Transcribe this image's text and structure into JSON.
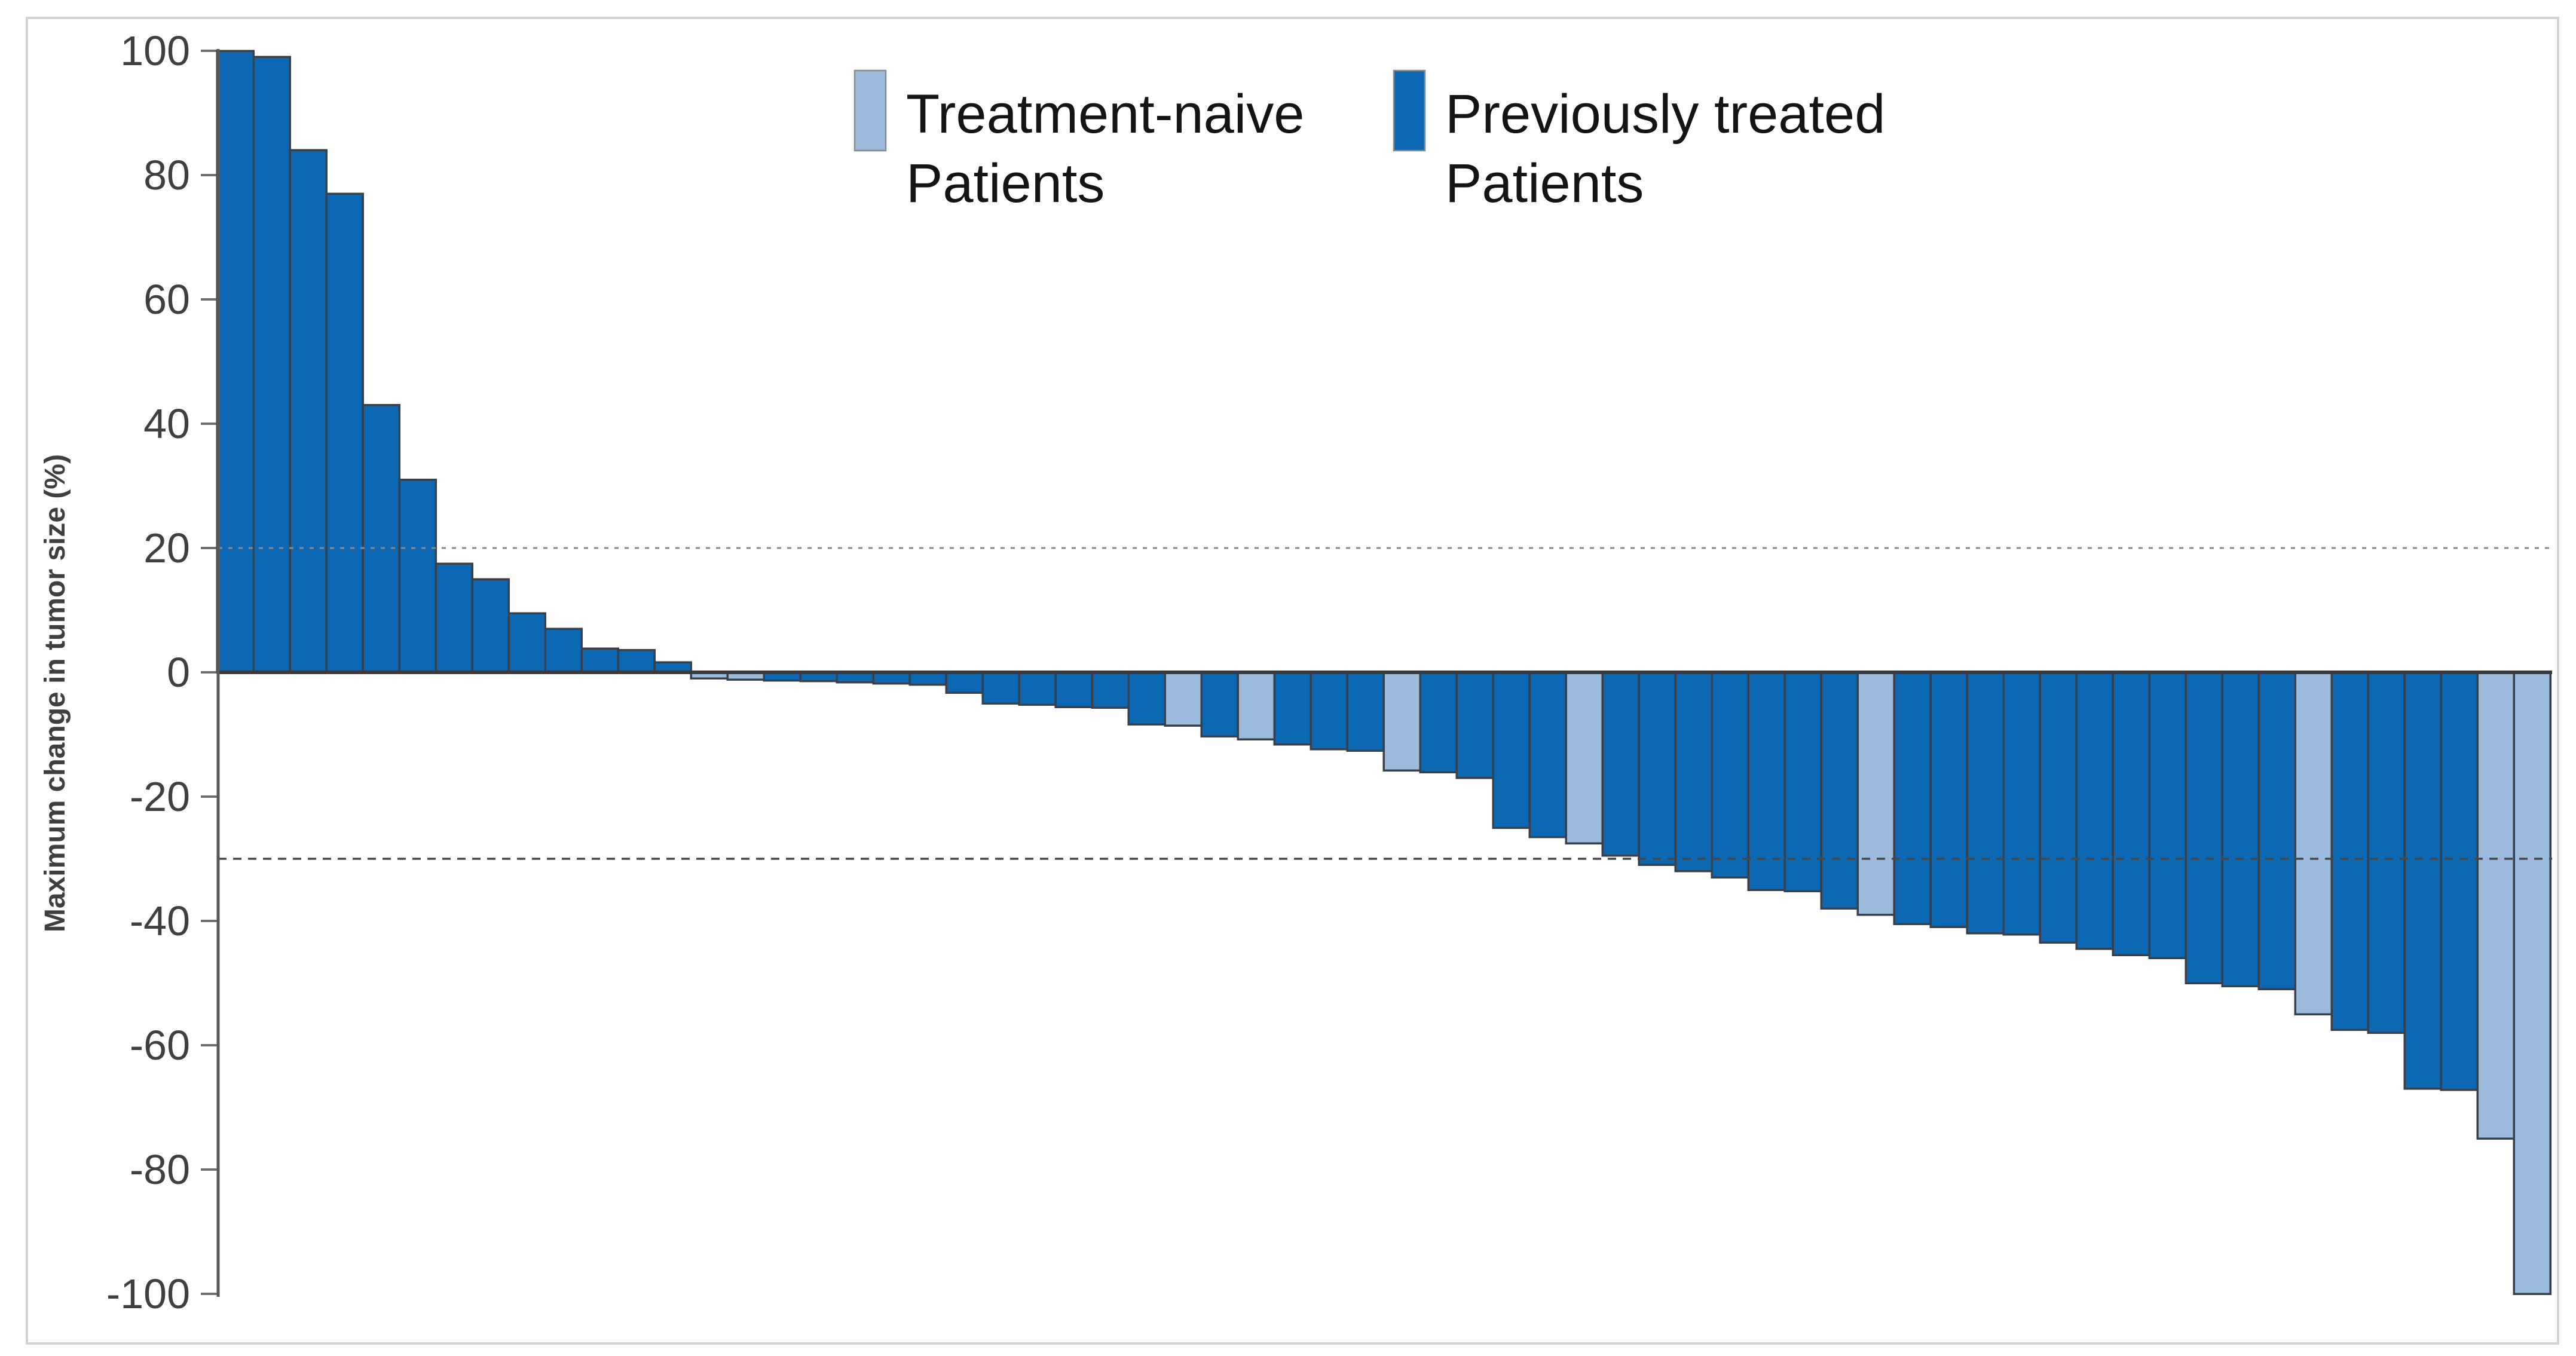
{
  "figure": {
    "type": "waterfall-tumor-response-plot",
    "background": "#ffffff",
    "frame_color": "#d2d2d2"
  },
  "y_axis": {
    "title": "Maximum change in tumor size (%)",
    "ticks": [
      100,
      80,
      60,
      40,
      20,
      0,
      -20,
      -40,
      -60,
      -80,
      -100
    ],
    "min": -100,
    "max": 100,
    "axis_color": "#58585a",
    "tick_color": "#707070",
    "label_color": "#3f3f3f"
  },
  "reference_lines": [
    {
      "value": 20,
      "style": "dotted",
      "color": "#8a8a8a"
    },
    {
      "value": -30,
      "style": "dashed",
      "color": "#474747"
    }
  ],
  "zero_line_color": "#393a3e",
  "legend": {
    "items": [
      {
        "series": "treatment-naive",
        "line1": "Treatment-naive",
        "line2": "Patients",
        "color": "#9cbbdc"
      },
      {
        "series": "previously-treated",
        "line1": "Previously treated",
        "line2": "Patients",
        "color": "#0c68b2"
      }
    ],
    "swatch_border": "#8a8a8a"
  },
  "chart_data": {
    "type": "bar",
    "subtype": "waterfall",
    "title": "",
    "xlabel": "",
    "ylabel": "Maximum change in tumor size (%)",
    "ylim": [
      -100,
      100
    ],
    "grid": false,
    "legend_position": "top",
    "bar_outline_color": "#3a404a",
    "series_colors": {
      "treatment-naive": "#9cbbdc",
      "previously-treated": "#0c68b2"
    },
    "bars": [
      {
        "patient": 1,
        "value": 100,
        "group": "previously-treated"
      },
      {
        "patient": 2,
        "value": 99,
        "group": "previously-treated"
      },
      {
        "patient": 3,
        "value": 84,
        "group": "previously-treated"
      },
      {
        "patient": 4,
        "value": 77,
        "group": "previously-treated"
      },
      {
        "patient": 5,
        "value": 43,
        "group": "previously-treated"
      },
      {
        "patient": 6,
        "value": 31,
        "group": "previously-treated"
      },
      {
        "patient": 7,
        "value": 17.5,
        "group": "previously-treated"
      },
      {
        "patient": 8,
        "value": 15,
        "group": "previously-treated"
      },
      {
        "patient": 9,
        "value": 9.5,
        "group": "previously-treated"
      },
      {
        "patient": 10,
        "value": 7,
        "group": "previously-treated"
      },
      {
        "patient": 11,
        "value": 3.8,
        "group": "previously-treated"
      },
      {
        "patient": 12,
        "value": 3.6,
        "group": "previously-treated"
      },
      {
        "patient": 13,
        "value": 1.6,
        "group": "previously-treated"
      },
      {
        "patient": 14,
        "value": -1,
        "group": "treatment-naive"
      },
      {
        "patient": 15,
        "value": -1.2,
        "group": "treatment-naive"
      },
      {
        "patient": 16,
        "value": -1.3,
        "group": "previously-treated"
      },
      {
        "patient": 17,
        "value": -1.4,
        "group": "previously-treated"
      },
      {
        "patient": 18,
        "value": -1.6,
        "group": "previously-treated"
      },
      {
        "patient": 19,
        "value": -1.8,
        "group": "previously-treated"
      },
      {
        "patient": 20,
        "value": -2,
        "group": "previously-treated"
      },
      {
        "patient": 21,
        "value": -3.3,
        "group": "previously-treated"
      },
      {
        "patient": 22,
        "value": -5,
        "group": "previously-treated"
      },
      {
        "patient": 23,
        "value": -5.2,
        "group": "previously-treated"
      },
      {
        "patient": 24,
        "value": -5.6,
        "group": "previously-treated"
      },
      {
        "patient": 25,
        "value": -5.7,
        "group": "previously-treated"
      },
      {
        "patient": 26,
        "value": -8.4,
        "group": "previously-treated"
      },
      {
        "patient": 27,
        "value": -8.6,
        "group": "treatment-naive"
      },
      {
        "patient": 28,
        "value": -10.3,
        "group": "previously-treated"
      },
      {
        "patient": 29,
        "value": -10.8,
        "group": "treatment-naive"
      },
      {
        "patient": 30,
        "value": -11.6,
        "group": "previously-treated"
      },
      {
        "patient": 31,
        "value": -12.4,
        "group": "previously-treated"
      },
      {
        "patient": 32,
        "value": -12.6,
        "group": "previously-treated"
      },
      {
        "patient": 33,
        "value": -15.8,
        "group": "treatment-naive"
      },
      {
        "patient": 34,
        "value": -16.1,
        "group": "previously-treated"
      },
      {
        "patient": 35,
        "value": -17,
        "group": "previously-treated"
      },
      {
        "patient": 36,
        "value": -25,
        "group": "previously-treated"
      },
      {
        "patient": 37,
        "value": -26.5,
        "group": "previously-treated"
      },
      {
        "patient": 38,
        "value": -27.5,
        "group": "treatment-naive"
      },
      {
        "patient": 39,
        "value": -29.5,
        "group": "previously-treated"
      },
      {
        "patient": 40,
        "value": -31,
        "group": "previously-treated"
      },
      {
        "patient": 41,
        "value": -32,
        "group": "previously-treated"
      },
      {
        "patient": 42,
        "value": -33,
        "group": "previously-treated"
      },
      {
        "patient": 43,
        "value": -35,
        "group": "previously-treated"
      },
      {
        "patient": 44,
        "value": -35.2,
        "group": "previously-treated"
      },
      {
        "patient": 45,
        "value": -38,
        "group": "previously-treated"
      },
      {
        "patient": 46,
        "value": -39,
        "group": "treatment-naive"
      },
      {
        "patient": 47,
        "value": -40.5,
        "group": "previously-treated"
      },
      {
        "patient": 48,
        "value": -41,
        "group": "previously-treated"
      },
      {
        "patient": 49,
        "value": -42,
        "group": "previously-treated"
      },
      {
        "patient": 50,
        "value": -42.2,
        "group": "previously-treated"
      },
      {
        "patient": 51,
        "value": -43.5,
        "group": "previously-treated"
      },
      {
        "patient": 52,
        "value": -44.5,
        "group": "previously-treated"
      },
      {
        "patient": 53,
        "value": -45.5,
        "group": "previously-treated"
      },
      {
        "patient": 54,
        "value": -46,
        "group": "previously-treated"
      },
      {
        "patient": 55,
        "value": -50,
        "group": "previously-treated"
      },
      {
        "patient": 56,
        "value": -50.5,
        "group": "previously-treated"
      },
      {
        "patient": 57,
        "value": -51,
        "group": "previously-treated"
      },
      {
        "patient": 58,
        "value": -55,
        "group": "treatment-naive"
      },
      {
        "patient": 59,
        "value": -57.5,
        "group": "previously-treated"
      },
      {
        "patient": 60,
        "value": -58,
        "group": "previously-treated"
      },
      {
        "patient": 61,
        "value": -67,
        "group": "previously-treated"
      },
      {
        "patient": 62,
        "value": -67.2,
        "group": "previously-treated"
      },
      {
        "patient": 63,
        "value": -75,
        "group": "treatment-naive"
      },
      {
        "patient": 64,
        "value": -100,
        "group": "treatment-naive"
      }
    ]
  }
}
